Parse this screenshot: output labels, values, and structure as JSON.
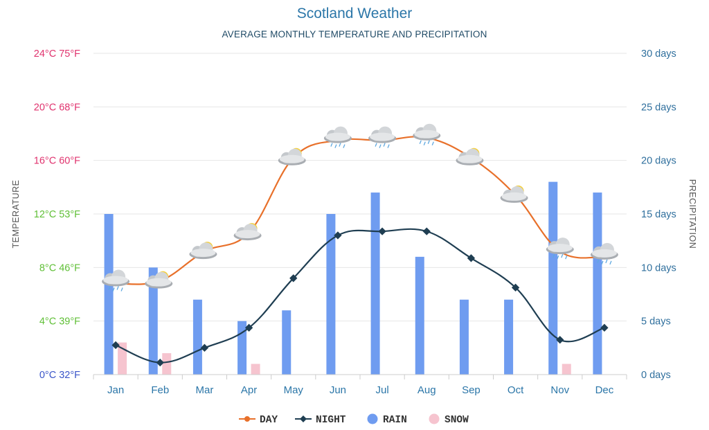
{
  "chart_data": {
    "type": "line",
    "title": "Scotland Weather",
    "subtitle": "AVERAGE MONTHLY TEMPERATURE AND PRECIPITATION",
    "categories": [
      "Jan",
      "Feb",
      "Mar",
      "Apr",
      "May",
      "Jun",
      "Jul",
      "Aug",
      "Sep",
      "Oct",
      "Nov",
      "Dec"
    ],
    "y_left": {
      "label": "TEMPERATURE",
      "unit": "°C",
      "range": [
        0,
        24
      ],
      "ticks": [
        {
          "value": 0,
          "label": "0°C 32°F",
          "color": "#3a55c9"
        },
        {
          "value": 4,
          "label": "4°C 39°F",
          "color": "#5fbf36"
        },
        {
          "value": 8,
          "label": "8°C 46°F",
          "color": "#5fbf36"
        },
        {
          "value": 12,
          "label": "12°C 53°F",
          "color": "#5fbf36"
        },
        {
          "value": 16,
          "label": "16°C 60°F",
          "color": "#e0336e"
        },
        {
          "value": 20,
          "label": "20°C 68°F",
          "color": "#e0336e"
        },
        {
          "value": 24,
          "label": "24°C 75°F",
          "color": "#e0336e"
        }
      ]
    },
    "y_right": {
      "label": "PRECIPITATION",
      "unit": "days",
      "range": [
        0,
        30
      ],
      "ticks": [
        {
          "value": 0,
          "label": "0 days"
        },
        {
          "value": 5,
          "label": "5 days"
        },
        {
          "value": 10,
          "label": "10 days"
        },
        {
          "value": 15,
          "label": "15 days"
        },
        {
          "value": 20,
          "label": "20 days"
        },
        {
          "value": 25,
          "label": "25 days"
        },
        {
          "value": 30,
          "label": "30 days"
        }
      ]
    },
    "series": [
      {
        "name": "DAY",
        "type": "line",
        "axis": "left",
        "color": "#e8702a",
        "values": [
          6.8,
          7.0,
          9.2,
          10.6,
          16.2,
          17.5,
          17.5,
          17.7,
          16.2,
          13.4,
          9.2,
          8.8
        ]
      },
      {
        "name": "NIGHT",
        "type": "line",
        "axis": "left",
        "color": "#1f3e52",
        "values": [
          2.2,
          0.9,
          2.0,
          3.5,
          7.2,
          10.4,
          10.7,
          10.7,
          8.7,
          6.5,
          2.6,
          3.5
        ]
      },
      {
        "name": "RAIN",
        "type": "bar",
        "axis": "right",
        "color": "#6f9cf0",
        "values": [
          15,
          10,
          7,
          5,
          6,
          15,
          17,
          11,
          7,
          7,
          18,
          17
        ]
      },
      {
        "name": "SNOW",
        "type": "bar",
        "axis": "right",
        "color": "#f6c4cf",
        "values": [
          3,
          2,
          0,
          1,
          0,
          0,
          0,
          0,
          0,
          0,
          1,
          0
        ]
      }
    ],
    "weather_icons": [
      "cloud-rain-icon",
      "sun-cloud-icon",
      "sun-cloud-icon",
      "sun-cloud-icon",
      "sun-cloud-icon",
      "cloud-rain-icon",
      "cloud-rain-icon",
      "cloud-rain-icon",
      "sun-cloud-icon",
      "sun-cloud-icon",
      "cloud-rain-icon",
      "cloud-rain-icon"
    ],
    "grid": true,
    "legend": {
      "position": "bottom-center"
    }
  }
}
